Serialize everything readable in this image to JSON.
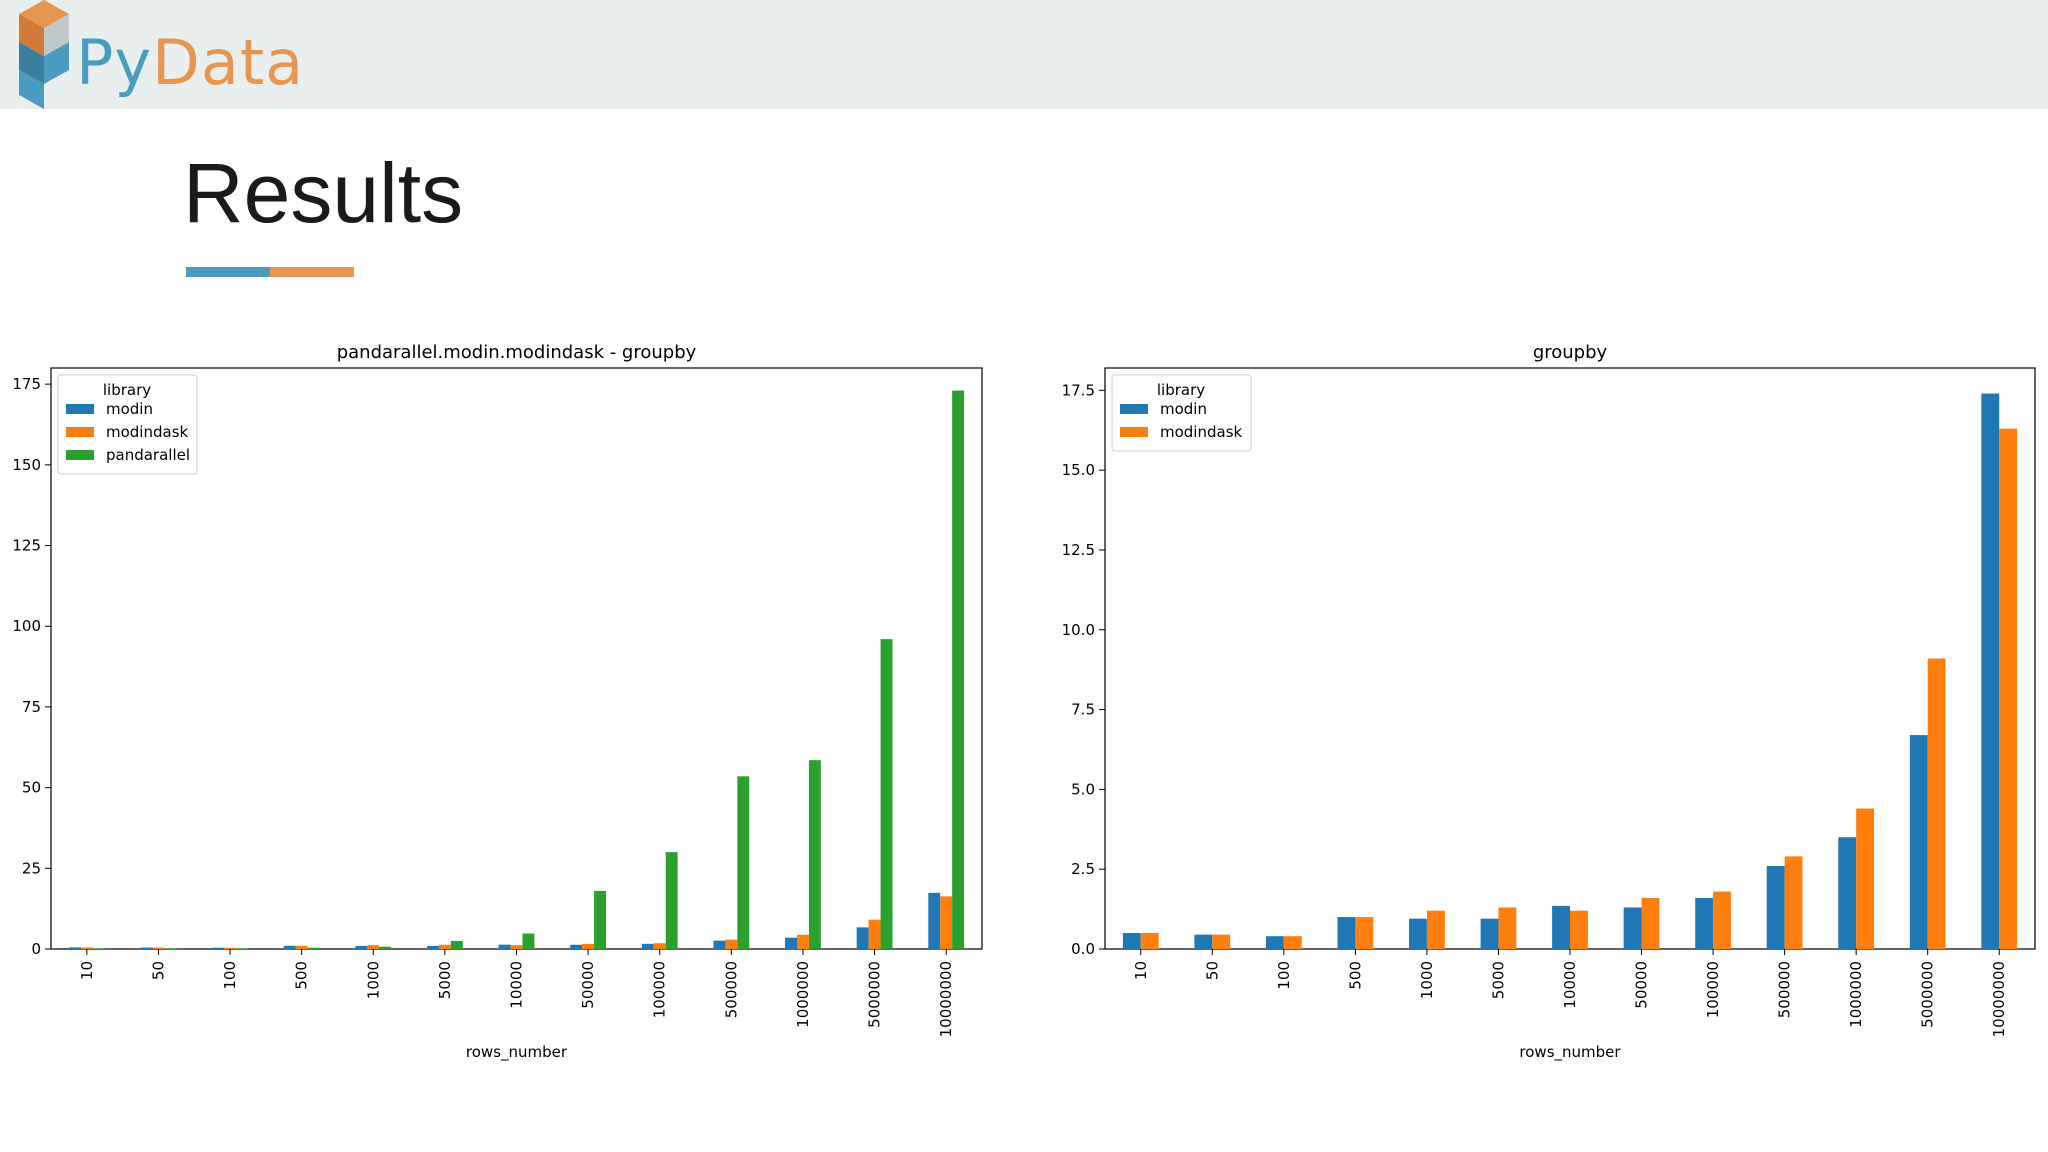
{
  "header": {
    "logo_py": "Py",
    "logo_data": "Data"
  },
  "slide": {
    "title": "Results"
  },
  "colors": {
    "modin": "#1f77b4",
    "modindask": "#ff7f0e",
    "pandarallel": "#2ca02c",
    "brand_blue": "#4b9cc0",
    "brand_orange": "#e6964f"
  },
  "chart_data": [
    {
      "type": "bar",
      "title": "pandarallel.modin.modindask - groupby",
      "xlabel": "rows_number",
      "ylabel": "",
      "legend_title": "library",
      "legend_position": "top-left",
      "categories": [
        "10",
        "50",
        "100",
        "500",
        "1000",
        "5000",
        "10000",
        "50000",
        "100000",
        "500000",
        "1000000",
        "5000000",
        "10000000"
      ],
      "ylim": [
        0,
        180
      ],
      "yticks": [
        0,
        25,
        50,
        75,
        100,
        125,
        150,
        175
      ],
      "series": [
        {
          "name": "modin",
          "color": "#1f77b4",
          "values": [
            0.5,
            0.45,
            0.4,
            1.0,
            0.95,
            0.95,
            1.35,
            1.3,
            1.6,
            2.6,
            3.5,
            6.7,
            17.4
          ]
        },
        {
          "name": "modindask",
          "color": "#ff7f0e",
          "values": [
            0.5,
            0.45,
            0.4,
            1.0,
            1.2,
            1.3,
            1.2,
            1.6,
            1.8,
            2.9,
            4.4,
            9.1,
            16.3
          ]
        },
        {
          "name": "pandarallel",
          "color": "#2ca02c",
          "values": [
            0.2,
            0.2,
            0.2,
            0.4,
            0.7,
            2.5,
            4.8,
            18,
            30,
            53.5,
            58.5,
            96,
            173
          ]
        }
      ]
    },
    {
      "type": "bar",
      "title": "groupby",
      "xlabel": "rows_number",
      "ylabel": "",
      "legend_title": "library",
      "legend_position": "top-left",
      "categories": [
        "10",
        "50",
        "100",
        "500",
        "1000",
        "5000",
        "10000",
        "50000",
        "100000",
        "500000",
        "1000000",
        "5000000",
        "10000000"
      ],
      "ylim": [
        0,
        18.2
      ],
      "yticks": [
        0.0,
        2.5,
        5.0,
        7.5,
        10.0,
        12.5,
        15.0,
        17.5
      ],
      "series": [
        {
          "name": "modin",
          "color": "#1f77b4",
          "values": [
            0.5,
            0.45,
            0.4,
            1.0,
            0.95,
            0.95,
            1.35,
            1.3,
            1.6,
            2.6,
            3.5,
            6.7,
            17.4
          ]
        },
        {
          "name": "modindask",
          "color": "#ff7f0e",
          "values": [
            0.5,
            0.45,
            0.4,
            1.0,
            1.2,
            1.3,
            1.2,
            1.6,
            1.8,
            2.9,
            4.4,
            9.1,
            16.3
          ]
        }
      ]
    }
  ]
}
